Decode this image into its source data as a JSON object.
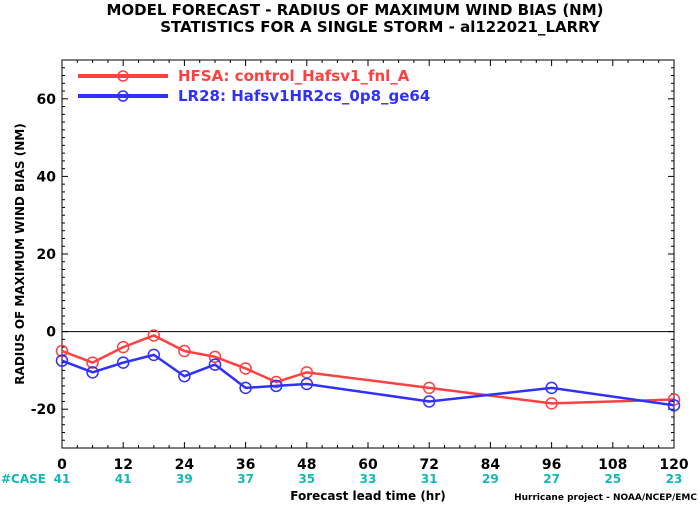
{
  "chart_data": {
    "type": "line",
    "title": "MODEL FORECAST - RADIUS OF MAXIMUM WIND BIAS (NM)",
    "subtitle": "STATISTICS FOR A SINGLE STORM - al122021_LARRY",
    "xlabel": "Forecast lead time (hr)",
    "ylabel": "RADIUS OF MAXIMUM WIND BIAS (NM)",
    "xlim": [
      0,
      120
    ],
    "ylim": [
      -30,
      70
    ],
    "xticks": [
      0,
      12,
      24,
      36,
      48,
      60,
      72,
      84,
      96,
      108,
      120
    ],
    "yticks": [
      -20,
      0,
      20,
      40,
      60
    ],
    "grid": false,
    "legend_position": "top-left",
    "case_label": "#CASE",
    "case_counts": [
      {
        "x": 0,
        "label": "41"
      },
      {
        "x": 12,
        "label": "41"
      },
      {
        "x": 24,
        "label": "39"
      },
      {
        "x": 36,
        "label": "37"
      },
      {
        "x": 48,
        "label": "35"
      },
      {
        "x": 60,
        "label": "33"
      },
      {
        "x": 72,
        "label": "31"
      },
      {
        "x": 84,
        "label": "29"
      },
      {
        "x": 96,
        "label": "27"
      },
      {
        "x": 108,
        "label": "25"
      },
      {
        "x": 120,
        "label": "23"
      }
    ],
    "series": [
      {
        "name": "HFSA: control_Hafsv1_fnl_A",
        "color": "#ff4040",
        "x": [
          0,
          6,
          12,
          18,
          24,
          30,
          36,
          42,
          48,
          72,
          96,
          120
        ],
        "y": [
          -5,
          -8,
          -4,
          -1,
          -5,
          -6.5,
          -9.5,
          -13,
          -10.5,
          -14.5,
          -18.5,
          -17.5
        ]
      },
      {
        "name": "LR28: Hafsv1HR2cs_0p8_ge64",
        "color": "#3030ff",
        "x": [
          0,
          6,
          12,
          18,
          24,
          30,
          36,
          42,
          48,
          72,
          96,
          120
        ],
        "y": [
          -7.5,
          -10.5,
          -8,
          -6,
          -11.5,
          -8.5,
          -14.5,
          -14,
          -13.5,
          -18,
          -14.5,
          -19
        ]
      }
    ]
  },
  "credit": "Hurricane project - NOAA/NCEP/EMC"
}
